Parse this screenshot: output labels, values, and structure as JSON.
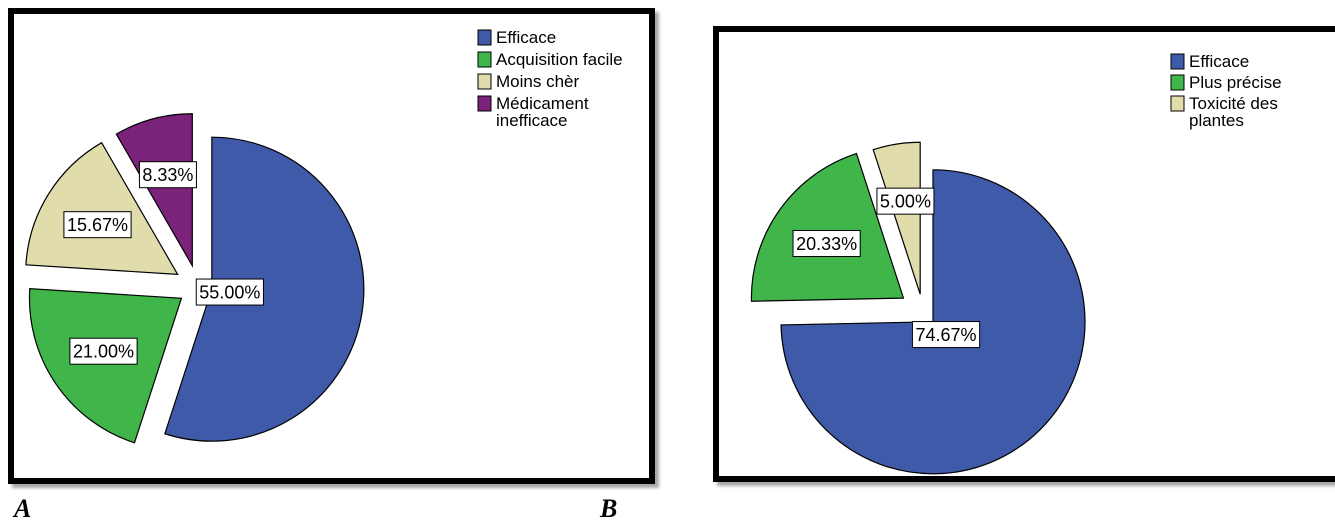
{
  "chart_data": [
    {
      "type": "pie",
      "panel_label": "A",
      "slices": [
        {
          "name": "Efficace",
          "value": 55.0,
          "label": "55.00%",
          "color": "#3f5aa9"
        },
        {
          "name": "Acquisition facile",
          "value": 21.0,
          "label": "21.00%",
          "color": "#40b54a"
        },
        {
          "name": "Moins chèr",
          "value": 15.67,
          "label": "15.67%",
          "color": "#e0dcac"
        },
        {
          "name": "Médicament inefficace",
          "value": 8.33,
          "label": "8.33%",
          "color": "#7b237a"
        }
      ],
      "legend": [
        "Efficace",
        "Acquisition facile",
        "Moins chèr",
        "Médicament inefficace"
      ],
      "legend_position": "top-right"
    },
    {
      "type": "pie",
      "panel_label": "B",
      "slices": [
        {
          "name": "Efficace",
          "value": 74.67,
          "label": "74.67%",
          "color": "#3f5aa9"
        },
        {
          "name": "Plus précise",
          "value": 20.33,
          "label": "20.33%",
          "color": "#40b54a"
        },
        {
          "name": "Toxicité des plantes",
          "value": 5.0,
          "label": "5.00%",
          "color": "#e0dcac"
        }
      ],
      "legend": [
        "Efficace",
        "Plus précise",
        "Toxicité des plantes"
      ],
      "legend_position": "top-right"
    }
  ]
}
